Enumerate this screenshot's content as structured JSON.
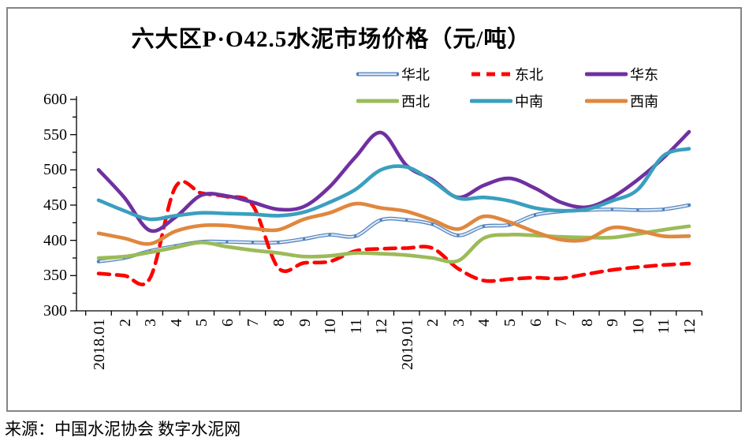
{
  "title": "六大区P·O42.5水泥市场价格（元/吨）",
  "source_note": "来源：中国水泥协会  数字水泥网",
  "colors": {
    "frame_border": "#858585",
    "axis": "#000000",
    "background": "#ffffff"
  },
  "chart_data": {
    "type": "line",
    "title": "六大区P·O42.5水泥市场价格（元/吨）",
    "xlabel": "",
    "ylabel": "",
    "ylim": [
      300,
      600
    ],
    "y_ticks": [
      600,
      550,
      500,
      450,
      400,
      350,
      300
    ],
    "y_minor_tick_step": 25,
    "grid": false,
    "legend_position": "top-right, two rows",
    "x_labels": [
      "2018.01",
      "2",
      "3",
      "4",
      "5",
      "6",
      "7",
      "8",
      "9",
      "10",
      "11",
      "12",
      "2019.01",
      "2",
      "3",
      "4",
      "5",
      "6",
      "7",
      "8",
      "9",
      "10",
      "11",
      "12"
    ],
    "series": [
      {
        "name": "华北",
        "color": "#4f81bd",
        "style": "outlined",
        "inner_color": "#dce6f2",
        "values": [
          370,
          375,
          385,
          392,
          398,
          398,
          397,
          397,
          402,
          408,
          406,
          429,
          429,
          423,
          407,
          420,
          422,
          436,
          441,
          443,
          444,
          443,
          444,
          450
        ]
      },
      {
        "name": "东北",
        "color": "#fe0000",
        "style": "dashed",
        "values": [
          353,
          350,
          346,
          476,
          467,
          462,
          450,
          361,
          368,
          370,
          385,
          388,
          389,
          389,
          360,
          343,
          345,
          347,
          346,
          352,
          358,
          362,
          365,
          367
        ]
      },
      {
        "name": "华东",
        "color": "#7030a0",
        "style": "solid",
        "values": [
          500,
          461,
          414,
          433,
          464,
          463,
          454,
          444,
          448,
          476,
          518,
          553,
          506,
          486,
          461,
          478,
          488,
          474,
          454,
          447,
          461,
          486,
          517,
          554
        ]
      },
      {
        "name": "西北",
        "color": "#9bbb59",
        "style": "solid",
        "values": [
          375,
          377,
          383,
          390,
          397,
          391,
          386,
          382,
          377,
          378,
          382,
          381,
          379,
          375,
          371,
          403,
          408,
          407,
          405,
          404,
          404,
          409,
          415,
          420
        ]
      },
      {
        "name": "中南",
        "color": "#3a9fbf",
        "style": "solid",
        "values": [
          457,
          442,
          430,
          435,
          439,
          438,
          437,
          435,
          440,
          454,
          472,
          500,
          504,
          484,
          460,
          461,
          456,
          446,
          442,
          444,
          456,
          472,
          520,
          530
        ]
      },
      {
        "name": "西南",
        "color": "#e0873e",
        "style": "solid",
        "values": [
          410,
          403,
          395,
          413,
          421,
          421,
          417,
          415,
          430,
          439,
          452,
          446,
          441,
          429,
          416,
          434,
          426,
          412,
          401,
          401,
          418,
          414,
          406,
          406
        ]
      }
    ]
  }
}
